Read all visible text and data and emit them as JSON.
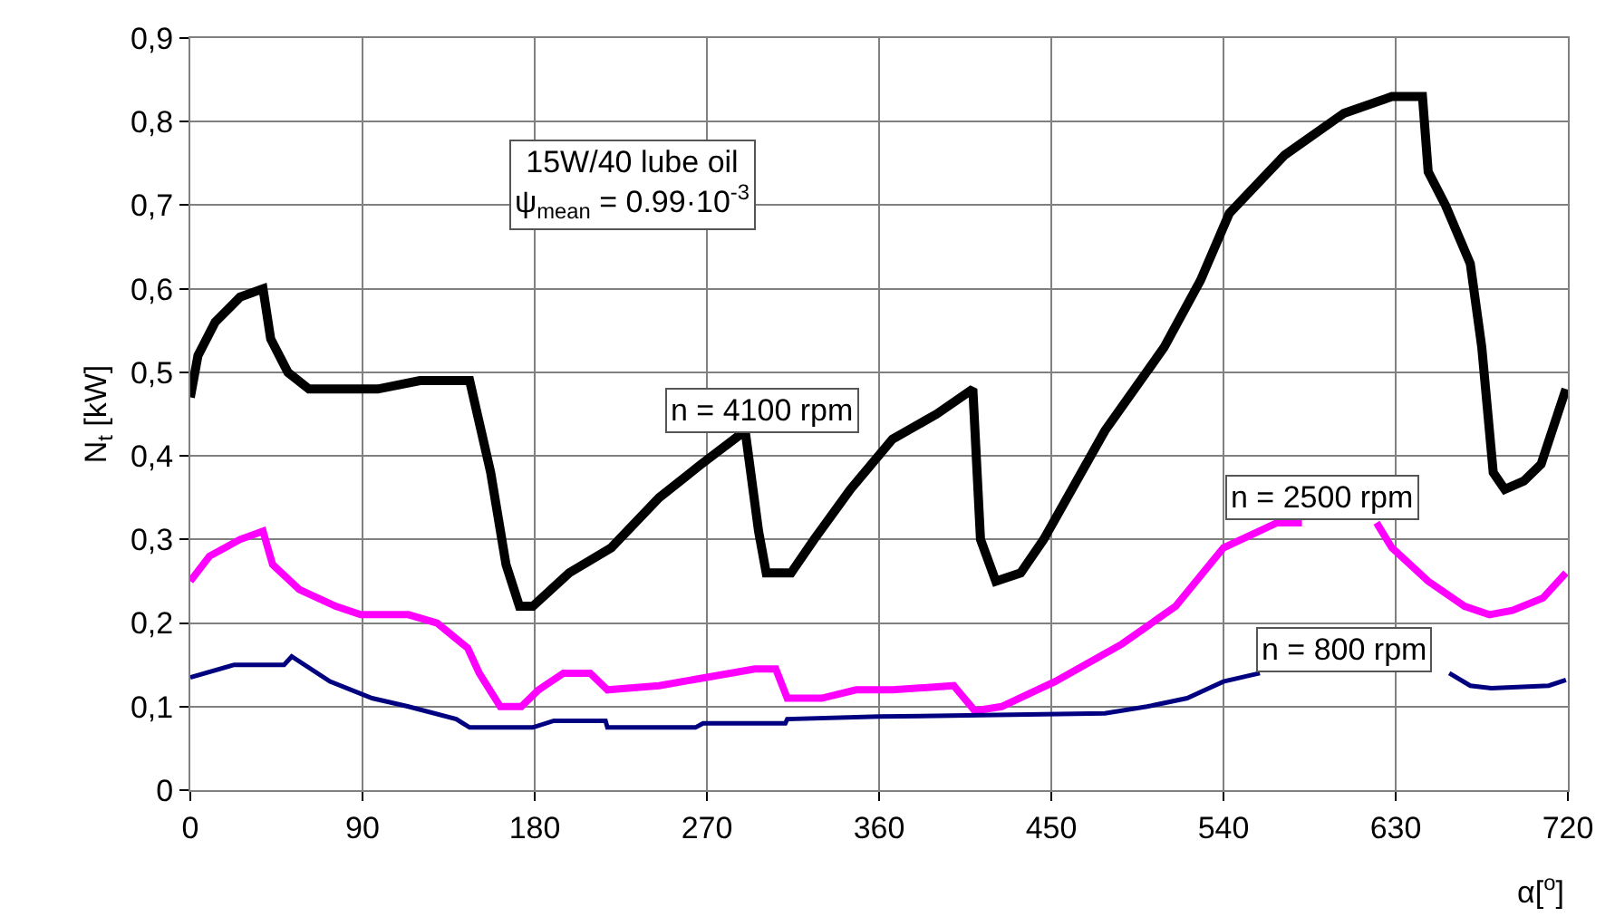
{
  "chart_data": {
    "type": "line",
    "xlabel": "α[$^{o}$]",
    "ylabel": "N$_{t}$ [kW]",
    "xlim": [
      0,
      720
    ],
    "xticks": [
      0,
      90,
      180,
      270,
      360,
      450,
      540,
      630,
      720
    ],
    "ylim": [
      0,
      0.9
    ],
    "yticks": [
      0,
      {
        "value": 0.1,
        "label": "0,1"
      },
      {
        "value": 0.2,
        "label": "0,2"
      },
      {
        "value": 0.3,
        "label": "0,3"
      },
      {
        "value": 0.4,
        "label": "0,4"
      },
      {
        "value": 0.5,
        "label": "0,5"
      },
      {
        "value": 0.6,
        "label": "0,6"
      },
      {
        "value": 0.7,
        "label": "0,7"
      },
      {
        "value": 0.8,
        "label": "0,8"
      },
      {
        "value": 0.9,
        "label": "0,9"
      }
    ],
    "grid": true,
    "legend": false,
    "marker": "none",
    "line_style": "solid",
    "annotations": [
      "15W/40 lube oil\nψ$_{mean}$ = 0.99·10$^{-3}$"
    ],
    "series": [
      {
        "name": "n = 4100 rpm",
        "color": "#000000",
        "x": [
          0,
          4,
          13,
          26,
          38,
          42,
          51,
          62,
          98,
          120,
          146,
          157,
          165,
          172,
          179,
          198,
          220,
          245,
          267,
          290,
          297,
          301,
          314,
          326,
          345,
          367,
          390,
          409,
          413,
          421,
          434,
          446,
          478,
          509,
          528,
          543,
          572,
          603,
          628,
          644,
          647,
          656,
          669,
          675,
          681,
          687,
          697,
          706,
          719
        ],
        "values": [
          0.47,
          0.52,
          0.56,
          0.59,
          0.6,
          0.54,
          0.5,
          0.48,
          0.48,
          0.49,
          0.49,
          0.38,
          0.27,
          0.22,
          0.22,
          0.26,
          0.29,
          0.35,
          0.39,
          0.43,
          0.31,
          0.26,
          0.26,
          0.3,
          0.36,
          0.42,
          0.45,
          0.48,
          0.3,
          0.25,
          0.26,
          0.3,
          0.43,
          0.53,
          0.61,
          0.69,
          0.76,
          0.81,
          0.83,
          0.83,
          0.74,
          0.7,
          0.63,
          0.53,
          0.38,
          0.36,
          0.37,
          0.39,
          0.48
        ]
      },
      {
        "name": "n = 2500 rpm",
        "color": "#ff00ff",
        "x": [
          0,
          10,
          26,
          38,
          43,
          57,
          76,
          89,
          114,
          129,
          145,
          151,
          162,
          173,
          182,
          195,
          209,
          218,
          245,
          270,
          295,
          306,
          312,
          330,
          348,
          367,
          399,
          410,
          424,
          452,
          487,
          515,
          540,
          568,
          581,
          600,
          620,
          628,
          647,
          666,
          679,
          691,
          707,
          719
        ],
        "values": [
          0.25,
          0.28,
          0.3,
          0.31,
          0.27,
          0.24,
          0.22,
          0.21,
          0.21,
          0.2,
          0.17,
          0.14,
          0.1,
          0.1,
          0.12,
          0.14,
          0.14,
          0.12,
          0.125,
          0.135,
          0.145,
          0.145,
          0.11,
          0.11,
          0.12,
          0.12,
          0.125,
          0.095,
          0.1,
          0.13,
          0.175,
          0.22,
          0.29,
          0.32,
          0.32,
          null,
          0.32,
          0.29,
          0.25,
          0.22,
          0.21,
          0.215,
          0.23,
          0.26
        ]
      },
      {
        "name": "n = 800 rpm",
        "color": "#000080",
        "x": [
          0,
          23,
          49,
          53,
          73,
          95,
          114,
          139,
          146,
          179,
          190,
          217,
          218,
          264,
          268,
          311,
          312,
          360,
          478,
          500,
          521,
          540,
          559,
          600,
          658,
          669,
          680,
          710,
          719
        ],
        "values": [
          0.135,
          0.15,
          0.15,
          0.16,
          0.13,
          0.11,
          0.1,
          0.085,
          0.075,
          0.075,
          0.083,
          0.083,
          0.075,
          0.075,
          0.08,
          0.08,
          0.085,
          0.088,
          0.092,
          0.1,
          0.11,
          0.13,
          0.14,
          null,
          0.14,
          0.125,
          0.122,
          0.125,
          0.132
        ]
      }
    ]
  }
}
